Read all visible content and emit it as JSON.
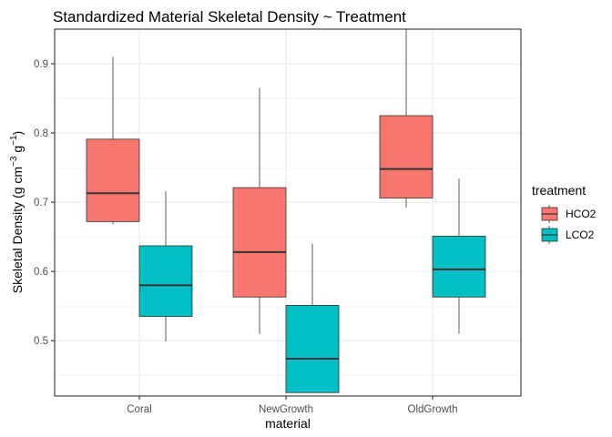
{
  "chart_data": {
    "type": "boxplot",
    "title": "Standardized Material Skeletal Density ~ Treatment",
    "xlabel": "material",
    "ylabel": {
      "prefix": "Skeletal Density (g cm",
      "exp1": "−3",
      "mid": " g",
      "exp2": "−1",
      "suffix": ")"
    },
    "categories": [
      "Coral",
      "NewGrowth",
      "OldGrowth"
    ],
    "ylim": [
      0.42,
      0.95
    ],
    "yticks": [
      0.5,
      0.6,
      0.7,
      0.8,
      0.9
    ],
    "ytick_labels": [
      "0.5",
      "0.6",
      "0.7",
      "0.8",
      "0.9"
    ],
    "grid": true,
    "legend": {
      "title": "treatment",
      "position": "right",
      "entries": [
        {
          "label": "HCO2",
          "color": "#F8766D"
        },
        {
          "label": "LCO2",
          "color": "#00BFC4"
        }
      ]
    },
    "series": [
      {
        "name": "HCO2",
        "color": "#F8766D",
        "boxes": [
          {
            "category": "Coral",
            "min": 0.668,
            "q1": 0.672,
            "median": 0.713,
            "q3": 0.791,
            "max": 0.91
          },
          {
            "category": "NewGrowth",
            "min": 0.51,
            "q1": 0.563,
            "median": 0.628,
            "q3": 0.721,
            "max": 0.865
          },
          {
            "category": "OldGrowth",
            "min": 0.692,
            "q1": 0.706,
            "median": 0.748,
            "q3": 0.825,
            "max": 0.95
          }
        ]
      },
      {
        "name": "LCO2",
        "color": "#00BFC4",
        "boxes": [
          {
            "category": "Coral",
            "min": 0.499,
            "q1": 0.535,
            "median": 0.58,
            "q3": 0.637,
            "max": 0.716
          },
          {
            "category": "NewGrowth",
            "min": 0.425,
            "q1": 0.425,
            "median": 0.474,
            "q3": 0.551,
            "max": 0.64
          },
          {
            "category": "OldGrowth",
            "min": 0.51,
            "q1": 0.563,
            "median": 0.603,
            "q3": 0.651,
            "max": 0.734
          }
        ]
      }
    ]
  }
}
